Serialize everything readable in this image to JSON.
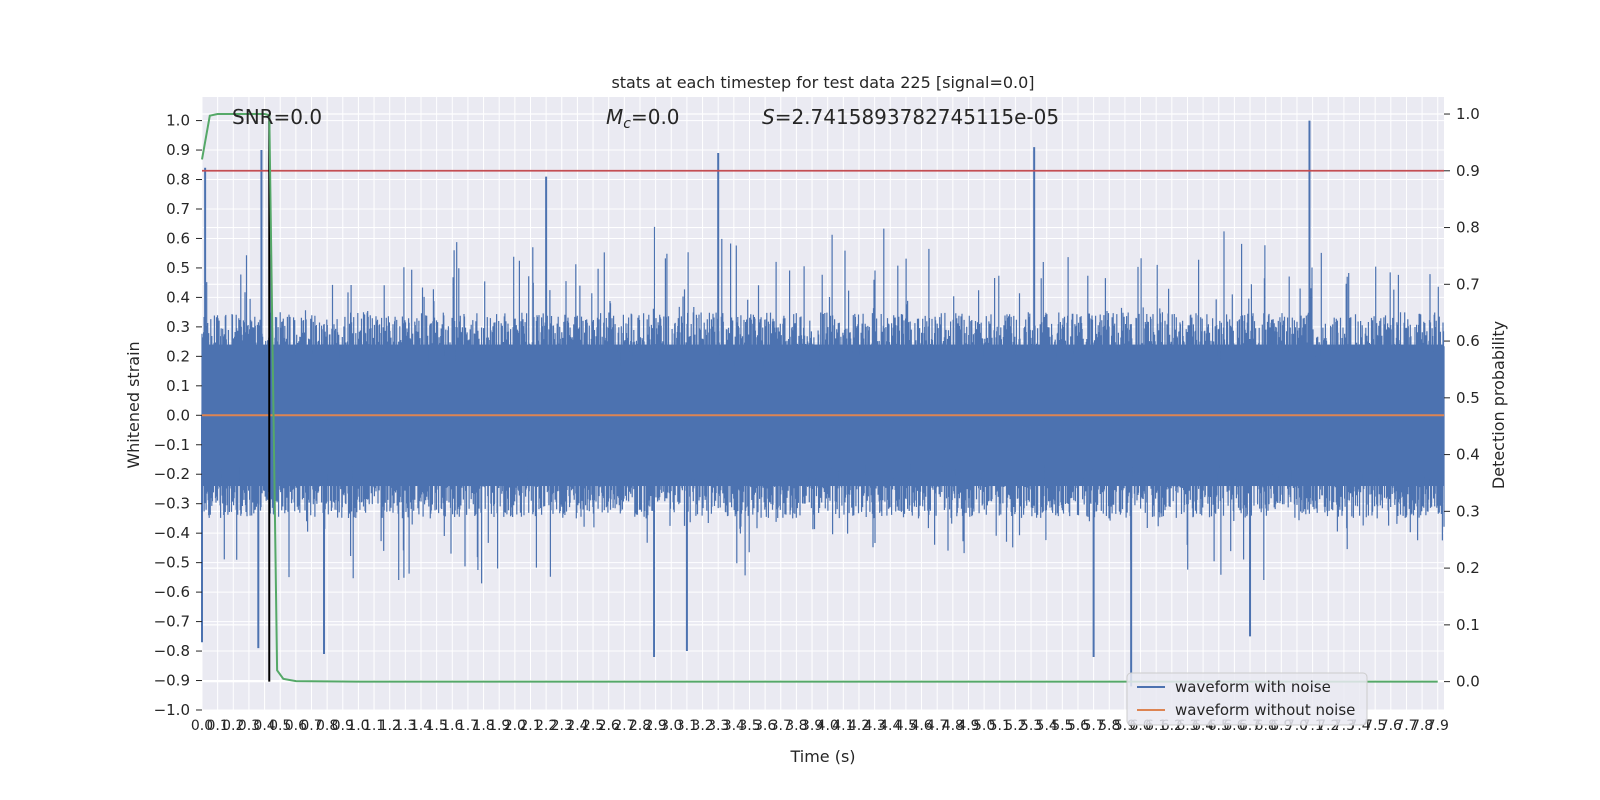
{
  "chart_data": {
    "type": "line",
    "title": "stats at each timestep for test data 225 [signal=0.0]",
    "xlabel": "Time (s)",
    "ylabel": "Whitened strain",
    "ylabel_right": "Detection probability",
    "xlim": [
      0.0,
      7.94
    ],
    "ylim": [
      -1.0,
      1.08
    ],
    "ylim_right": [
      -0.05,
      1.03
    ],
    "x_ticks": [
      "0.0",
      "0.1",
      "0.2",
      "0.3",
      "0.4",
      "0.5",
      "0.6",
      "0.7",
      "0.8",
      "0.9",
      "1.0",
      "1.1",
      "1.2",
      "1.3",
      "1.4",
      "1.5",
      "1.6",
      "1.7",
      "1.8",
      "1.9",
      "2.0",
      "2.1",
      "2.2",
      "2.3",
      "2.4",
      "2.5",
      "2.6",
      "2.7",
      "2.8",
      "2.9",
      "3.0",
      "3.1",
      "3.2",
      "3.3",
      "3.4",
      "3.5",
      "3.6",
      "3.7",
      "3.8",
      "3.9",
      "4.0",
      "4.1",
      "4.2",
      "4.3",
      "4.4",
      "4.5",
      "4.6",
      "4.7",
      "4.8",
      "4.9",
      "5.0",
      "5.1",
      "5.2",
      "5.3",
      "5.4",
      "5.5",
      "5.6",
      "5.7",
      "5.8",
      "5.9",
      "6.0",
      "6.1",
      "6.2",
      "6.3",
      "6.4",
      "6.5",
      "6.6",
      "6.7",
      "6.8",
      "6.9",
      "7.0",
      "7.1",
      "7.2",
      "7.3",
      "7.4",
      "7.5",
      "7.6",
      "7.7",
      "7.8",
      "7.9"
    ],
    "y_ticks": [
      "−1.0",
      "−0.9",
      "−0.8",
      "−0.7",
      "−0.6",
      "−0.5",
      "−0.4",
      "−0.3",
      "−0.2",
      "−0.1",
      "0.0",
      "0.1",
      "0.2",
      "0.3",
      "0.4",
      "0.5",
      "0.6",
      "0.7",
      "0.8",
      "0.9",
      "1.0"
    ],
    "y_ticks_right": [
      "0.0",
      "0.1",
      "0.2",
      "0.3",
      "0.4",
      "0.5",
      "0.6",
      "0.7",
      "0.8",
      "0.9",
      "1.0"
    ],
    "annotations": {
      "snr": "SNR=0.0",
      "mc_symbol": "M",
      "mc_sub": "c",
      "mc_value": "=0.0",
      "s_symbol": "S",
      "s_value": "=2.7415893782745115e-05"
    },
    "grid": true,
    "legend_position": "lower right",
    "series": [
      {
        "name": "waveform with noise",
        "color": "#4c72b0",
        "axis": "left",
        "envelope_typical": [
          -0.35,
          0.35
        ],
        "peaks": [
          {
            "x": 0.02,
            "y": 0.84
          },
          {
            "x": 0.38,
            "y": 0.9
          },
          {
            "x": 2.2,
            "y": 0.81
          },
          {
            "x": 3.3,
            "y": 0.89
          },
          {
            "x": 5.32,
            "y": 0.91
          },
          {
            "x": 7.08,
            "y": 1.0
          },
          {
            "x": 0.0,
            "y": -0.77
          },
          {
            "x": 0.36,
            "y": -0.79
          },
          {
            "x": 0.78,
            "y": -0.81
          },
          {
            "x": 2.89,
            "y": -0.82
          },
          {
            "x": 3.1,
            "y": -0.8
          },
          {
            "x": 5.7,
            "y": -0.82
          },
          {
            "x": 5.94,
            "y": -0.92
          },
          {
            "x": 6.7,
            "y": -0.75
          }
        ]
      },
      {
        "name": "waveform without noise",
        "color": "#dd8452",
        "axis": "left",
        "values_constant": 0.0
      },
      {
        "name": "",
        "color": "#55a868",
        "axis": "right",
        "x": [
          0.0,
          0.05,
          0.1,
          0.15,
          0.2,
          0.25,
          0.3,
          0.35,
          0.4,
          0.43,
          0.48,
          0.52,
          0.6,
          1.0,
          2.0,
          3.0,
          4.0,
          5.0,
          6.0,
          7.0,
          7.9
        ],
        "y": [
          0.92,
          0.997,
          1.0,
          1.0,
          1.0,
          1.0,
          1.0,
          1.0,
          1.0,
          0.998,
          0.02,
          0.005,
          0.001,
          0.0,
          0.0,
          0.0,
          0.0,
          0.0,
          0.0,
          0.0,
          0.0
        ]
      }
    ],
    "threshold": {
      "axis": "right",
      "value": 0.9,
      "color": "#c44e52"
    },
    "vertical_marker": {
      "x": 0.43,
      "color": "#000000"
    }
  }
}
